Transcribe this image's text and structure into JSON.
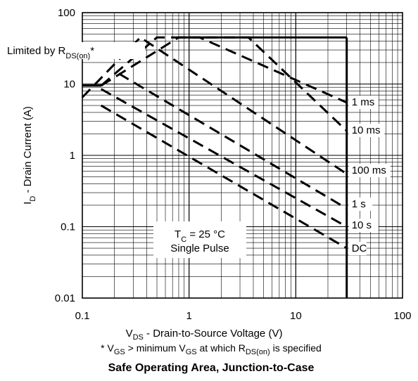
{
  "chart_data": {
    "type": "line",
    "title": "Safe Operating Area, Junction-to-Case",
    "xlabel": "V_DS - Drain-to-Source Voltage (V)",
    "ylabel": "I_D - Drain Current (A)",
    "xscale": "log",
    "yscale": "log",
    "xlim": [
      0.1,
      100
    ],
    "ylim": [
      0.01,
      100
    ],
    "x_ticks": [
      "0.1",
      "1",
      "10",
      "100"
    ],
    "y_ticks": [
      "0.01",
      "0.1",
      "1",
      "10",
      "100"
    ],
    "grid": true,
    "footnote": "* V_GS > minimum V_GS at which R_DS(on) is specified",
    "annotations": {
      "limited": "Limited by R_DS(on)*",
      "tc": "T_C = 25 °C",
      "pulse": "Single Pulse"
    },
    "envelope": {
      "current_limit_A": 45,
      "voltage_limit_V": 30
    },
    "series": [
      {
        "name": "1 ms",
        "points": [
          [
            0.15,
            9.5
          ],
          [
            0.8,
            45
          ],
          [
            1.25,
            45
          ],
          [
            30,
            5.5
          ]
        ]
      },
      {
        "name": "10 ms",
        "points": [
          [
            0.15,
            9.5
          ],
          [
            0.5,
            45
          ],
          [
            3.6,
            45
          ],
          [
            30,
            2.2
          ]
        ]
      },
      {
        "name": "100 ms",
        "points": [
          [
            0.1,
            6.5
          ],
          [
            0.35,
            45
          ],
          [
            30,
            0.55
          ]
        ]
      },
      {
        "name": "1 s",
        "points": [
          [
            0.22,
            14
          ],
          [
            30,
            0.18
          ]
        ]
      },
      {
        "name": "10 s",
        "points": [
          [
            0.15,
            8.5
          ],
          [
            30,
            0.1
          ]
        ]
      },
      {
        "name": "DC",
        "points": [
          [
            0.15,
            5
          ],
          [
            30,
            0.05
          ]
        ]
      }
    ]
  }
}
